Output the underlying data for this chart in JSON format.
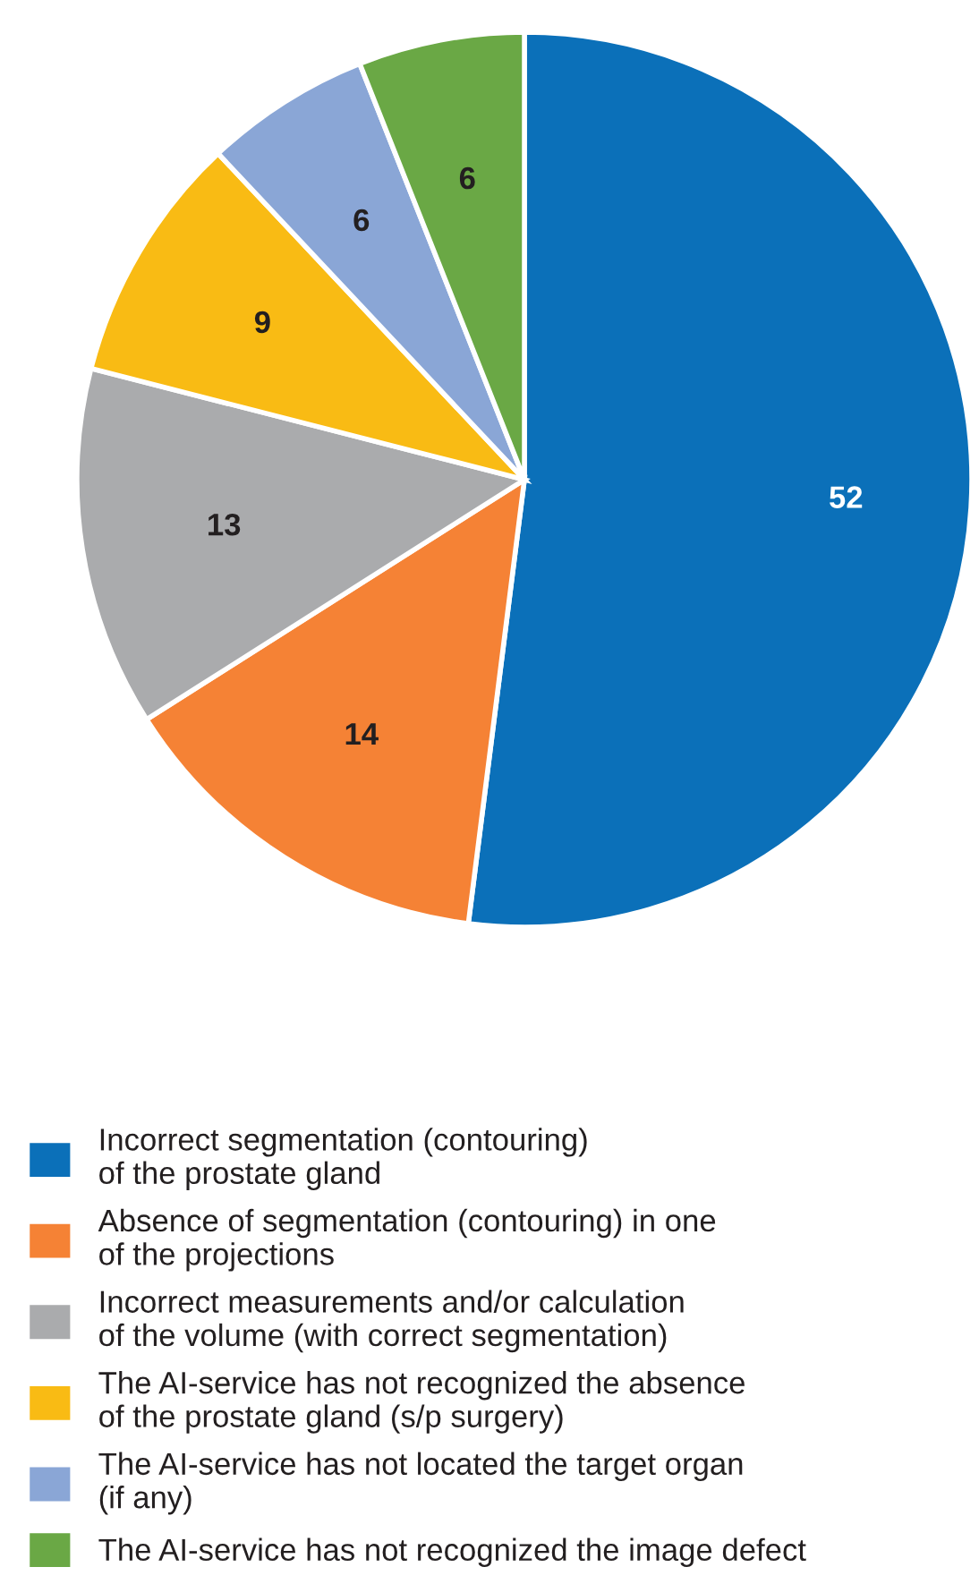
{
  "chart_data": {
    "type": "pie",
    "categories": [
      "Incorrect segmentation (contouring)\nof the prostate gland",
      "Absence of segmentation (contouring) in one\nof the projections",
      "Incorrect measurements and/or calculation\nof the volume (with correct segmentation)",
      "The AI-service has not recognized the absence\nof the prostate gland (s/p surgery)",
      "The AI-service has not located the target organ\n(if any)",
      "The AI-service has not recognized the image defect"
    ],
    "values": [
      52,
      14,
      13,
      9,
      6,
      6
    ],
    "colors": [
      "#0b70b9",
      "#f58235",
      "#aaabad",
      "#f9bb14",
      "#8aa6d6",
      "#6aa845"
    ],
    "data_labels": true,
    "legend": "bottom"
  }
}
